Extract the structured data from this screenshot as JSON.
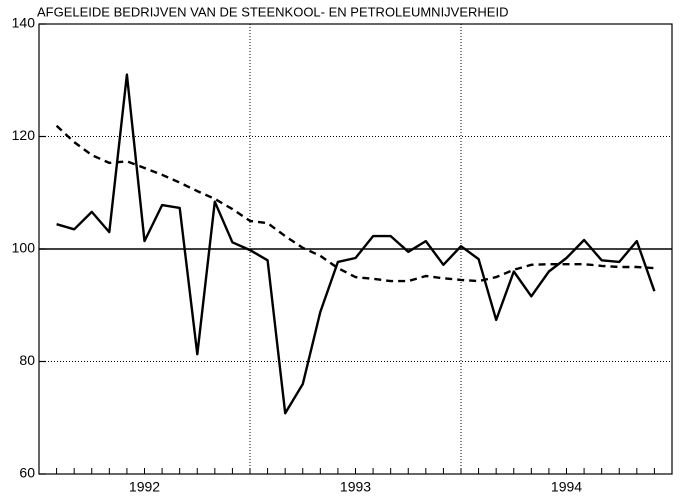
{
  "chart_data": {
    "type": "line",
    "title": "AFGELEIDE BEDRIJVEN VAN DE STEENKOOL- EN PETROLEUMNIJVERHEID",
    "categories": [
      null,
      null,
      null,
      null,
      null,
      "1992",
      null,
      null,
      null,
      null,
      null,
      null,
      null,
      null,
      null,
      null,
      null,
      "1993",
      null,
      null,
      null,
      null,
      null,
      null,
      null,
      null,
      null,
      null,
      null,
      "1994",
      null,
      null,
      null,
      null,
      null
    ],
    "series": [
      {
        "color": "#000000",
        "dash": false,
        "values": [
          104.4,
          103.5,
          106.6,
          103,
          131,
          101.4,
          107.8,
          107.3,
          81.3,
          108.4,
          101.2,
          99.8,
          98,
          70.8,
          76,
          88.8,
          97.7,
          98.4,
          102.3,
          102.3,
          99.5,
          101.4,
          97.2,
          100.5,
          98.2,
          87.4,
          96,
          91.6,
          96,
          98.4,
          101.6,
          98,
          97.7,
          101.4,
          92.5
        ]
      },
      {
        "color": "#000000",
        "dash": true,
        "values": [
          121.9,
          119,
          116.7,
          115.3,
          115.6,
          114.4,
          113.2,
          111.8,
          110.3,
          108.9,
          107.1,
          105,
          104.6,
          102.3,
          100.2,
          98.8,
          96.6,
          95,
          94.7,
          94.3,
          94.3,
          95.2,
          94.8,
          94.5,
          94.3,
          95,
          96.3,
          97.2,
          97.3,
          97.3,
          97.3,
          97,
          96.8,
          96.8,
          96.6
        ]
      }
    ],
    "ylim": [
      60,
      140
    ],
    "yticks": [
      60,
      80,
      100,
      120,
      140
    ],
    "grid": true,
    "hline": 100
  }
}
